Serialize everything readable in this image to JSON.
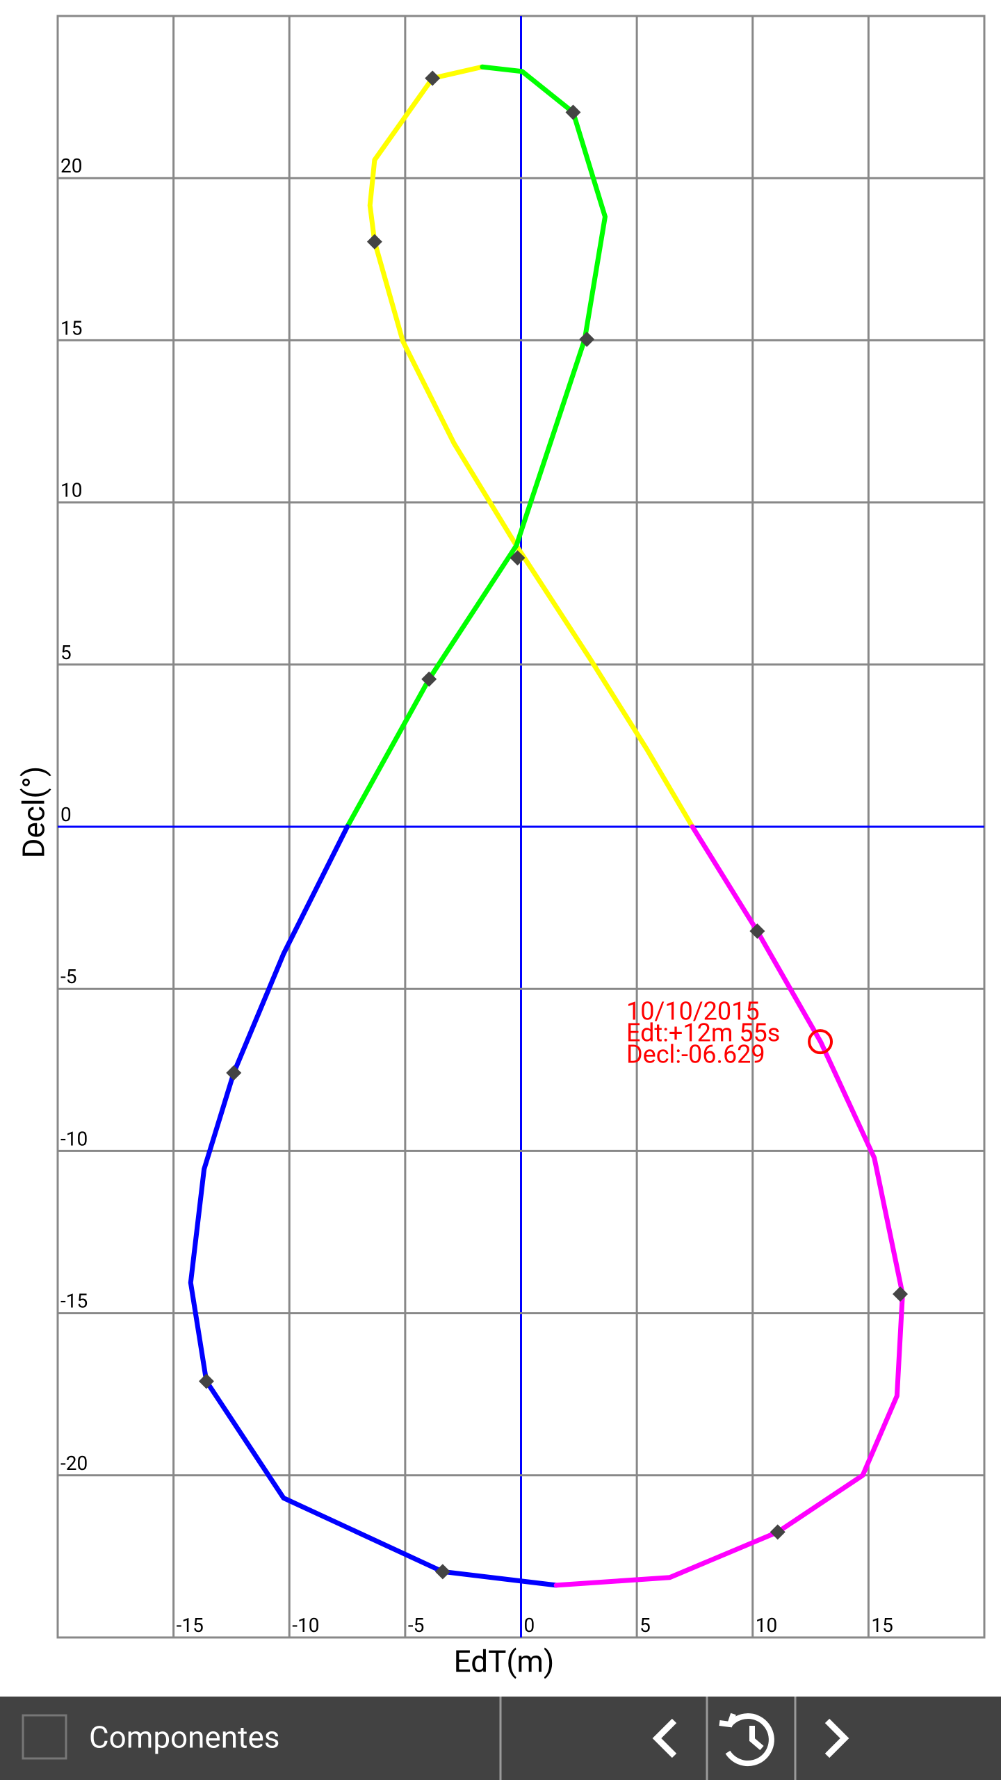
{
  "chart_data": {
    "type": "line",
    "x_label": "EdT(m)",
    "y_label": "Decl(°)",
    "xlim": [
      -20,
      20
    ],
    "ylim": [
      -25,
      25
    ],
    "xticks": [
      -15,
      -10,
      -5,
      0,
      5,
      10,
      15
    ],
    "yticks": [
      -20,
      -15,
      -10,
      -5,
      0,
      5,
      10,
      15,
      20
    ],
    "grid": true,
    "series": [
      {
        "color": "#ffff00",
        "x": [
          -1.67,
          -3.82,
          -6.32,
          -6.52,
          -6.32,
          -5.1,
          -2.89,
          -0.2,
          2.99,
          5.44,
          7.4
        ],
        "values": [
          23.43,
          23.08,
          20.56,
          19.16,
          18.04,
          14.97,
          11.82,
          8.67,
          5.17,
          2.38,
          0
        ]
      },
      {
        "color": "#00ff00",
        "x": [
          -7.5,
          -3.97,
          -0.2,
          2.75,
          3.63,
          2.25,
          0.05,
          -1.67
        ],
        "values": [
          0,
          4.55,
          8.67,
          15.03,
          18.81,
          22.03,
          23.29,
          23.43
        ]
      },
      {
        "color": "#0000ff",
        "x": [
          -7.5,
          -10.25,
          -12.4,
          -13.68,
          -14.26,
          -13.58,
          -10.25,
          -3.38,
          1.52
        ],
        "values": [
          0,
          -3.92,
          -7.59,
          -10.56,
          -14.06,
          -17.1,
          -20.7,
          -22.97,
          -23.39
        ]
      },
      {
        "color": "#ff00ff",
        "x": [
          7.4,
          10.2,
          12.94,
          15.25,
          16.47,
          16.23,
          14.75,
          11.08,
          6.42,
          1.52
        ],
        "values": [
          0,
          -3.22,
          -6.64,
          -10.21,
          -14.41,
          -17.55,
          -20.0,
          -21.75,
          -23.15,
          -23.39
        ]
      }
    ],
    "markers": {
      "color": "#444444",
      "x": [
        -3.82,
        2.25,
        -6.32,
        2.84,
        -0.15,
        -3.97,
        10.2,
        -12.4,
        16.37,
        -13.58,
        11.08,
        -3.38
      ],
      "values": [
        23.08,
        22.03,
        18.04,
        15.03,
        8.29,
        4.55,
        -3.22,
        -7.59,
        -14.41,
        -17.1,
        -21.75,
        -22.97
      ]
    },
    "annotation": {
      "color": "#ff0000",
      "x": 12.92,
      "y": -6.629,
      "lines": [
        "10/10/2015",
        "Edt:+12m 55s",
        "Decl:-06.629"
      ]
    }
  },
  "toolbar": {
    "checkbox_label": "Componentes"
  }
}
